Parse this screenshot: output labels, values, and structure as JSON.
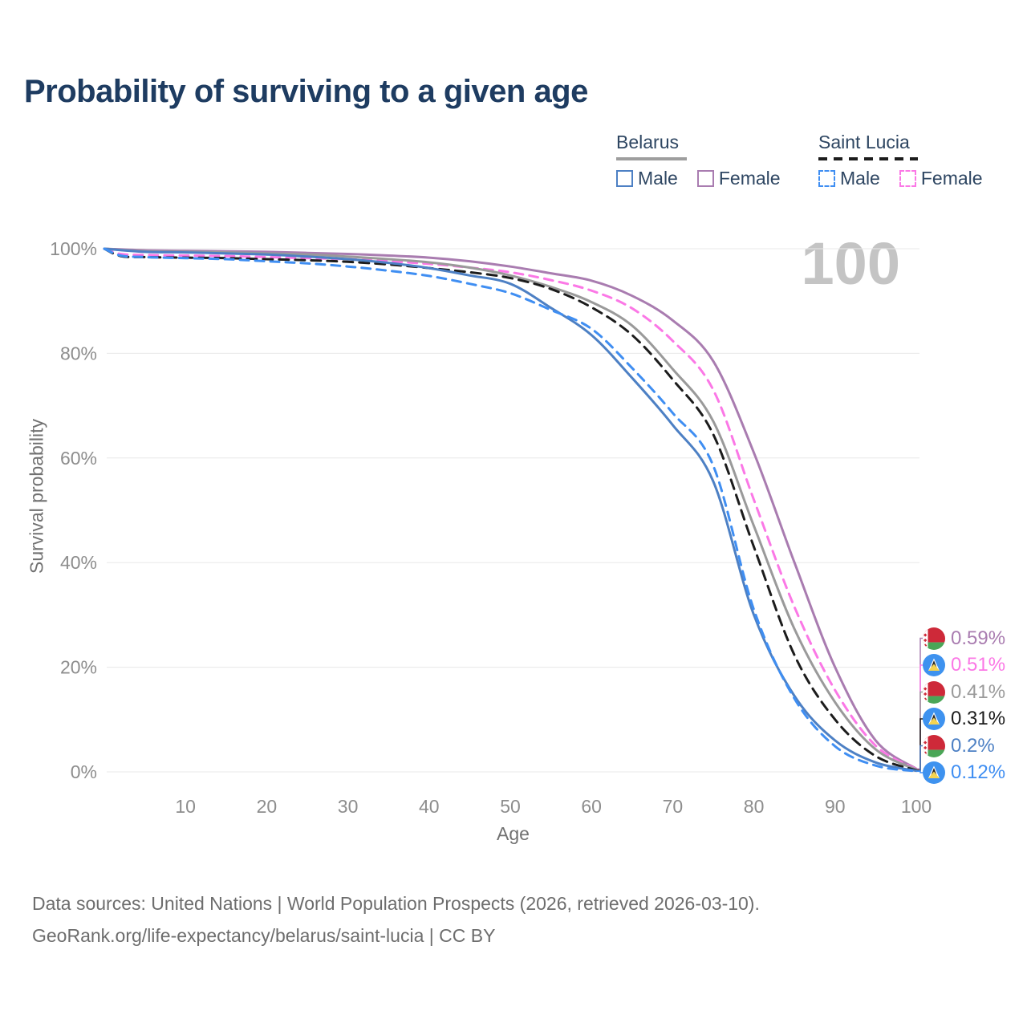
{
  "title": "Probability of surviving to a given age",
  "watermark": "100",
  "legend": {
    "groups": [
      {
        "country": "Belarus",
        "line_style": "solid",
        "underline_color": "#9e9e9e",
        "items": [
          {
            "label": "Male",
            "color": "#4d80c4"
          },
          {
            "label": "Female",
            "color": "#a97cb0"
          }
        ]
      },
      {
        "country": "Saint Lucia",
        "line_style": "dashed",
        "underline_color": "#1c1c1c",
        "items": [
          {
            "label": "Male",
            "color": "#3f8ef2"
          },
          {
            "label": "Female",
            "color": "#fb78e6"
          }
        ]
      }
    ]
  },
  "chart_data": {
    "type": "line",
    "title": "Probability of surviving to a given age",
    "xlabel": "Age",
    "ylabel": "Survival probability",
    "xlim": [
      0,
      100
    ],
    "ylim": [
      0,
      100
    ],
    "grid": "horizontal",
    "x_ticks": [
      10,
      20,
      30,
      40,
      50,
      60,
      70,
      80,
      90,
      100
    ],
    "y_ticks": [
      0,
      20,
      40,
      60,
      80,
      100
    ],
    "y_tick_labels": [
      "0%",
      "20%",
      "40%",
      "60%",
      "80%",
      "100%"
    ],
    "legend_position": "top-right",
    "series": [
      {
        "id": "by-female",
        "name": "Belarus Female",
        "country": "Belarus",
        "sex": "Female",
        "color": "#a97cb0",
        "dash": null,
        "end_value": "0.59%",
        "points": [
          [
            0,
            100
          ],
          [
            5,
            99.7
          ],
          [
            10,
            99.6
          ],
          [
            15,
            99.5
          ],
          [
            20,
            99.4
          ],
          [
            25,
            99.2
          ],
          [
            30,
            99.0
          ],
          [
            35,
            98.7
          ],
          [
            40,
            98.3
          ],
          [
            45,
            97.6
          ],
          [
            50,
            96.6
          ],
          [
            55,
            95.3
          ],
          [
            60,
            93.9
          ],
          [
            65,
            91.0
          ],
          [
            70,
            86.3
          ],
          [
            75,
            78.5
          ],
          [
            80,
            61.0
          ],
          [
            85,
            40.0
          ],
          [
            90,
            20.0
          ],
          [
            95,
            6.0
          ],
          [
            100,
            0.59
          ]
        ]
      },
      {
        "id": "lc-female",
        "name": "Saint Lucia Female",
        "country": "Saint Lucia",
        "sex": "Female",
        "color": "#fb78e6",
        "dash": [
          11,
          8
        ],
        "end_value": "0.51%",
        "points": [
          [
            0,
            100
          ],
          [
            2,
            99.0
          ],
          [
            5,
            98.8
          ],
          [
            10,
            98.7
          ],
          [
            15,
            98.6
          ],
          [
            20,
            98.4
          ],
          [
            25,
            98.2
          ],
          [
            30,
            98.0
          ],
          [
            35,
            97.6
          ],
          [
            40,
            97.1
          ],
          [
            45,
            96.4
          ],
          [
            50,
            95.5
          ],
          [
            55,
            94.0
          ],
          [
            60,
            92.0
          ],
          [
            65,
            88.6
          ],
          [
            70,
            82.4
          ],
          [
            75,
            73.0
          ],
          [
            80,
            52.0
          ],
          [
            85,
            31.5
          ],
          [
            90,
            15.6
          ],
          [
            95,
            5.0
          ],
          [
            100,
            0.51
          ]
        ]
      },
      {
        "id": "by-all",
        "name": "Belarus Both sexes",
        "country": "Belarus",
        "sex": "Both",
        "color": "#9a9a9a",
        "dash": null,
        "end_value": "0.41%",
        "points": [
          [
            0,
            100
          ],
          [
            5,
            99.5
          ],
          [
            10,
            99.4
          ],
          [
            15,
            99.3
          ],
          [
            20,
            99.1
          ],
          [
            25,
            98.9
          ],
          [
            30,
            98.5
          ],
          [
            35,
            98.0
          ],
          [
            40,
            97.4
          ],
          [
            45,
            96.4
          ],
          [
            50,
            94.9
          ],
          [
            55,
            92.7
          ],
          [
            60,
            89.8
          ],
          [
            65,
            85.3
          ],
          [
            70,
            77.0
          ],
          [
            75,
            67.0
          ],
          [
            80,
            47.0
          ],
          [
            85,
            27.3
          ],
          [
            90,
            13.3
          ],
          [
            95,
            4.3
          ],
          [
            100,
            0.41
          ]
        ]
      },
      {
        "id": "lc-all",
        "name": "Saint Lucia Both sexes",
        "country": "Saint Lucia",
        "sex": "Both",
        "color": "#1c1c1c",
        "dash": [
          12,
          8
        ],
        "end_value": "0.31%",
        "points": [
          [
            0,
            100
          ],
          [
            2,
            98.6
          ],
          [
            5,
            98.4
          ],
          [
            10,
            98.3
          ],
          [
            15,
            98.2
          ],
          [
            20,
            98.0
          ],
          [
            25,
            97.8
          ],
          [
            30,
            97.5
          ],
          [
            35,
            97.0
          ],
          [
            40,
            96.3
          ],
          [
            45,
            95.5
          ],
          [
            50,
            94.4
          ],
          [
            55,
            92.3
          ],
          [
            60,
            88.8
          ],
          [
            65,
            83.5
          ],
          [
            70,
            75.0
          ],
          [
            75,
            64.5
          ],
          [
            80,
            43.0
          ],
          [
            85,
            22.3
          ],
          [
            90,
            10.0
          ],
          [
            95,
            3.0
          ],
          [
            100,
            0.31
          ]
        ]
      },
      {
        "id": "by-male",
        "name": "Belarus Male",
        "country": "Belarus",
        "sex": "Male",
        "color": "#4d80c4",
        "dash": null,
        "end_value": "0.2%",
        "points": [
          [
            0,
            100
          ],
          [
            5,
            99.4
          ],
          [
            10,
            99.3
          ],
          [
            15,
            99.1
          ],
          [
            20,
            98.9
          ],
          [
            25,
            98.5
          ],
          [
            30,
            98.0
          ],
          [
            35,
            97.3
          ],
          [
            40,
            96.3
          ],
          [
            45,
            94.9
          ],
          [
            50,
            93.3
          ],
          [
            55,
            88.7
          ],
          [
            60,
            83.5
          ],
          [
            65,
            75.3
          ],
          [
            70,
            66.3
          ],
          [
            75,
            55.5
          ],
          [
            80,
            30.0
          ],
          [
            85,
            14.5
          ],
          [
            90,
            6.0
          ],
          [
            95,
            1.8
          ],
          [
            100,
            0.2
          ]
        ]
      },
      {
        "id": "lc-male",
        "name": "Saint Lucia Male",
        "country": "Saint Lucia",
        "sex": "Male",
        "color": "#3f8ef2",
        "dash": [
          11,
          8
        ],
        "end_value": "0.12%",
        "points": [
          [
            0,
            100
          ],
          [
            2,
            98.7
          ],
          [
            5,
            98.4
          ],
          [
            10,
            98.2
          ],
          [
            15,
            98.0
          ],
          [
            20,
            97.6
          ],
          [
            25,
            97.2
          ],
          [
            30,
            96.6
          ],
          [
            35,
            95.8
          ],
          [
            40,
            94.8
          ],
          [
            45,
            93.3
          ],
          [
            50,
            91.5
          ],
          [
            55,
            88.3
          ],
          [
            60,
            84.7
          ],
          [
            65,
            77.2
          ],
          [
            70,
            68.6
          ],
          [
            75,
            58.5
          ],
          [
            80,
            31.0
          ],
          [
            85,
            14.0
          ],
          [
            90,
            4.9
          ],
          [
            95,
            1.2
          ],
          [
            100,
            0.12
          ]
        ]
      }
    ],
    "end_labels": [
      {
        "series": "Belarus Female",
        "flag": "belarus",
        "value": "0.59%",
        "color": "#a97cb0"
      },
      {
        "series": "Saint Lucia Female",
        "flag": "saint-lucia",
        "value": "0.51%",
        "color": "#fb78e6"
      },
      {
        "series": "Belarus Both sexes",
        "flag": "belarus",
        "value": "0.41%",
        "color": "#9a9a9a"
      },
      {
        "series": "Saint Lucia Both sexes",
        "flag": "saint-lucia",
        "value": "0.31%",
        "color": "#1c1c1c"
      },
      {
        "series": "Belarus Male",
        "flag": "belarus",
        "value": "0.2%",
        "color": "#4d80c4"
      },
      {
        "series": "Saint Lucia Male",
        "flag": "saint-lucia",
        "value": "0.12%",
        "color": "#3f8ef2"
      }
    ]
  },
  "colors": {
    "title": "#1e3c61",
    "legend_text": "#2e4662",
    "gridline": "#e8e8e8",
    "tick_label": "#8d8d8d",
    "axis_title": "#717171",
    "watermark": "#c4c4c4",
    "footer": "#6d6d6d",
    "belarus_flag_red": "#ce2939",
    "belarus_flag_green": "#4aa657",
    "saint_lucia_flag_blue": "#3e92ef",
    "saint_lucia_flag_yellow": "#f5d451"
  },
  "footer": {
    "line1": "Data sources: United Nations | World Population Prospects (2026, retrieved 2026-03-10).",
    "line2": "GeoRank.org/life-expectancy/belarus/saint-lucia | CC BY"
  }
}
